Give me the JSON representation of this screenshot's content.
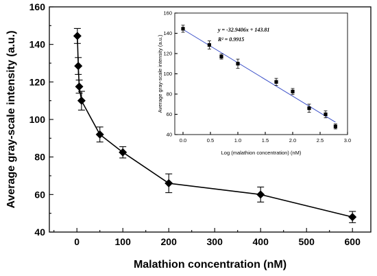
{
  "chart_data": [
    {
      "type": "line",
      "xlabel": "Malathion concentration (nM)",
      "ylabel": "Average gray-scale intensity (a.u.)",
      "xlim": [
        -60,
        640
      ],
      "ylim": [
        40,
        160
      ],
      "xticks": [
        0,
        100,
        200,
        300,
        400,
        500,
        600
      ],
      "yticks": [
        40,
        60,
        80,
        100,
        120,
        140,
        160
      ],
      "marker": "diamond",
      "grid": false,
      "series": [
        {
          "x": [
            1,
            3,
            5,
            10,
            50,
            100,
            200,
            400,
            600
          ],
          "y": [
            144.5,
            128.5,
            117.5,
            110,
            92,
            82.5,
            66,
            60,
            48
          ],
          "error": [
            4,
            4.5,
            3.5,
            5,
            4,
            3,
            5,
            4,
            3
          ]
        }
      ]
    },
    {
      "type": "scatter",
      "xlabel": "Log (malathion concentration) (nM)",
      "ylabel": "Average gray-scale intensity (a.u.)",
      "xlim": [
        -0.15,
        3.0
      ],
      "ylim": [
        40,
        160
      ],
      "xticks": [
        "0.0",
        "0.5",
        "1.0",
        "1.5",
        "2.0",
        "2.5",
        "3.0"
      ],
      "yticks": [
        "40",
        "60",
        "80",
        "100",
        "120",
        "140",
        "160"
      ],
      "marker": "square",
      "fit_color": "#3a4fc8",
      "equation": "y = -32.9406x + 143.81",
      "r2": "R² = 0.9915",
      "fit": {
        "slope": -32.9406,
        "intercept": 143.81,
        "x_range": [
          0,
          2.78
        ]
      },
      "series": [
        {
          "x": [
            0,
            0.48,
            0.7,
            1.0,
            1.7,
            2.0,
            2.3,
            2.6,
            2.78
          ],
          "y": [
            144.5,
            128.5,
            117,
            110,
            92,
            82.5,
            66,
            60,
            48
          ],
          "error": [
            3.5,
            4,
            2.5,
            4.5,
            3.5,
            3,
            4,
            3.5,
            2.5
          ]
        }
      ]
    }
  ]
}
